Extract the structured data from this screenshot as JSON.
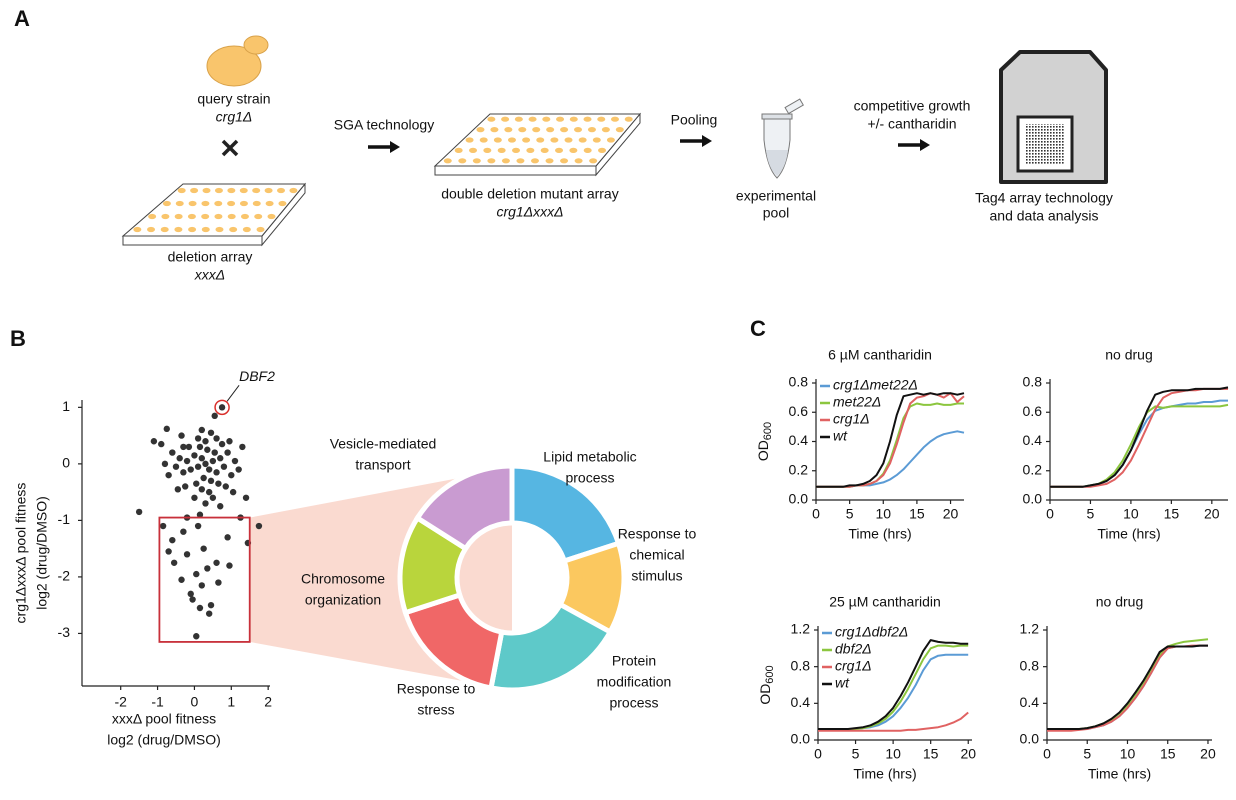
{
  "panel_labels": [
    "A",
    "B",
    "C"
  ],
  "panel_a": {
    "query_label": "query strain",
    "query_name": "crg1Δ",
    "deletion_label": "deletion array",
    "deletion_name": "xxxΔ",
    "step1": "SGA technology",
    "double_label": "double deletion mutant array",
    "double_name": "crg1ΔxxxΔ",
    "step2": "Pooling",
    "pool_label": [
      "experimental",
      "pool"
    ],
    "step3": [
      "competitive growth",
      "+/- cantharidin"
    ],
    "analysis": [
      "Tag4 array technology",
      "and data analysis"
    ]
  },
  "chart_data": [
    {
      "type": "scatter",
      "color": "#333333",
      "xlabel": [
        "xxxΔ pool fitness",
        "log2 (drug/DMSO)"
      ],
      "ylabel": [
        "crg1ΔxxxΔ pool fitness",
        "log2 (drug/DMSO)"
      ],
      "xlim": [
        -3.05,
        2.05
      ],
      "ylim": [
        -3.93,
        1.13
      ],
      "xticks": [
        -2,
        -1,
        0,
        1,
        2
      ],
      "yticks": [
        -3,
        -2,
        -1,
        0,
        1
      ],
      "annotation": "DBF2",
      "annotation_color": "#d9302c",
      "highlight": {
        "xlim": [
          -0.95,
          1.5
        ],
        "ylim": [
          -3.15,
          -0.95
        ],
        "color": "#c8303a"
      },
      "x": [
        0.75,
        0.3,
        0.2,
        0.4,
        0.1,
        0.5,
        0.0,
        0.6,
        -0.1,
        0.35,
        0.25,
        0.7,
        -0.2,
        0.45,
        0.15,
        0.8,
        -0.3,
        0.55,
        0.05,
        0.9,
        -0.4,
        0.65,
        0.3,
        -0.15,
        1.0,
        -0.5,
        0.2,
        0.75,
        0.4,
        -0.3,
        1.1,
        -0.6,
        0.5,
        0.1,
        0.85,
        -0.25,
        1.2,
        -0.7,
        0.6,
        0.0,
        0.95,
        -0.8,
        0.3,
        0.45,
        -0.45,
        1.05,
        -0.9,
        0.7,
        0.2,
        1.3,
        -0.35,
        0.55,
        -1.1,
        -0.75,
        1.4,
        1.75,
        -1.5,
        -0.85,
        0.1,
        -0.3,
        0.9,
        1.45,
        -0.6,
        0.25,
        -0.2,
        0.6,
        -0.7,
        0.35,
        0.05,
        -0.35,
        0.95,
        0.2,
        0.45,
        -0.1,
        -0.05,
        0.15,
        0.4,
        0.05,
        -0.55,
        0.65,
        1.25,
        -0.2,
        0.15
      ],
      "values": [
        1.0,
        0.0,
        0.1,
        -0.1,
        -0.05,
        0.05,
        0.15,
        -0.15,
        -0.1,
        0.25,
        -0.25,
        0.1,
        0.05,
        -0.3,
        0.3,
        -0.05,
        -0.15,
        0.2,
        -0.35,
        0.2,
        0.1,
        -0.35,
        0.4,
        0.3,
        -0.2,
        -0.05,
        -0.45,
        0.35,
        -0.5,
        0.3,
        0.05,
        0.2,
        -0.6,
        0.45,
        -0.4,
        -0.4,
        -0.1,
        -0.2,
        0.45,
        -0.6,
        0.4,
        0.0,
        -0.7,
        0.55,
        -0.45,
        -0.5,
        0.35,
        -0.75,
        0.6,
        0.3,
        0.5,
        0.85,
        0.4,
        0.62,
        -0.6,
        -1.1,
        -0.85,
        -1.1,
        -1.1,
        -1.2,
        -1.3,
        -1.4,
        -1.35,
        -1.5,
        -1.6,
        -1.75,
        -1.55,
        -1.85,
        -1.95,
        -2.05,
        -1.8,
        -2.15,
        -2.5,
        -2.3,
        -2.4,
        -2.55,
        -2.65,
        -3.05,
        -1.75,
        -2.1,
        -0.95,
        -0.95,
        -0.9
      ]
    },
    {
      "type": "donut",
      "categories": [
        [
          "Lipid metabolic",
          "process"
        ],
        [
          "Response to",
          "chemical",
          "stimulus"
        ],
        [
          "Protein",
          "modification",
          "process"
        ],
        [
          "Response to",
          "stress"
        ],
        [
          "Chromosome",
          "organization"
        ],
        [
          "Vesicle-mediated",
          "transport"
        ]
      ],
      "values": [
        20,
        13,
        20,
        17,
        14,
        16
      ],
      "colors": [
        "#56b6e2",
        "#fbc85f",
        "#5ec9c9",
        "#f06767",
        "#b9d53c",
        "#c99bd1"
      ]
    },
    {
      "type": "line",
      "title": "6 µM cantharidin",
      "xlabel": "Time (hrs)",
      "ylabel": [
        "OD",
        "600"
      ],
      "legend": true,
      "x": [
        0,
        1,
        2,
        3,
        4,
        5,
        6,
        7,
        8,
        9,
        10,
        11,
        12,
        13,
        14,
        15,
        16,
        17,
        18,
        19,
        20,
        21,
        22
      ],
      "xlim": [
        0,
        22
      ],
      "xticks": [
        0,
        5,
        10,
        15,
        20
      ],
      "ylim": [
        0,
        0.8
      ],
      "yticks": [
        {
          "value": 0,
          "label": "0.0"
        },
        0.2,
        0.4,
        0.6,
        0.8
      ],
      "series": [
        {
          "name": "crg1Δmet22Δ",
          "color": "#5b9bd5",
          "values": [
            0.09,
            0.09,
            0.09,
            0.09,
            0.09,
            0.09,
            0.1,
            0.1,
            0.1,
            0.11,
            0.12,
            0.14,
            0.17,
            0.21,
            0.26,
            0.31,
            0.36,
            0.4,
            0.43,
            0.45,
            0.46,
            0.47,
            0.46
          ]
        },
        {
          "name": "met22Δ",
          "color": "#8cc63f",
          "values": [
            0.09,
            0.09,
            0.09,
            0.09,
            0.09,
            0.09,
            0.1,
            0.1,
            0.11,
            0.13,
            0.18,
            0.27,
            0.41,
            0.56,
            0.64,
            0.66,
            0.65,
            0.65,
            0.66,
            0.65,
            0.65,
            0.66,
            0.66
          ]
        },
        {
          "name": "crg1Δ",
          "color": "#e06262",
          "values": [
            0.09,
            0.09,
            0.09,
            0.09,
            0.09,
            0.09,
            0.1,
            0.1,
            0.11,
            0.13,
            0.17,
            0.25,
            0.38,
            0.53,
            0.66,
            0.7,
            0.71,
            0.73,
            0.72,
            0.7,
            0.73,
            0.67,
            0.71
          ]
        },
        {
          "name": "wt",
          "color": "#111111",
          "values": [
            0.09,
            0.09,
            0.09,
            0.09,
            0.09,
            0.1,
            0.1,
            0.11,
            0.13,
            0.17,
            0.25,
            0.4,
            0.58,
            0.71,
            0.72,
            0.73,
            0.72,
            0.73,
            0.72,
            0.73,
            0.73,
            0.72,
            0.73
          ]
        }
      ]
    },
    {
      "type": "line",
      "title": "no drug",
      "xlabel": "Time (hrs)",
      "legend": false,
      "x": [
        0,
        1,
        2,
        3,
        4,
        5,
        6,
        7,
        8,
        9,
        10,
        11,
        12,
        13,
        14,
        15,
        16,
        17,
        18,
        19,
        20,
        21,
        22
      ],
      "xlim": [
        0,
        22
      ],
      "xticks": [
        0,
        5,
        10,
        15,
        20
      ],
      "ylim": [
        0,
        0.8
      ],
      "yticks": [
        {
          "value": 0,
          "label": "0.0"
        },
        0.2,
        0.4,
        0.6,
        0.8
      ],
      "series": [
        {
          "color": "#5b9bd5",
          "values": [
            0.09,
            0.09,
            0.09,
            0.09,
            0.09,
            0.1,
            0.11,
            0.13,
            0.17,
            0.24,
            0.34,
            0.45,
            0.55,
            0.61,
            0.63,
            0.64,
            0.65,
            0.66,
            0.66,
            0.67,
            0.67,
            0.68,
            0.68
          ]
        },
        {
          "color": "#8cc63f",
          "values": [
            0.09,
            0.09,
            0.09,
            0.09,
            0.09,
            0.1,
            0.11,
            0.14,
            0.19,
            0.27,
            0.38,
            0.5,
            0.6,
            0.64,
            0.63,
            0.64,
            0.64,
            0.64,
            0.64,
            0.64,
            0.64,
            0.64,
            0.65
          ]
        },
        {
          "color": "#e06262",
          "values": [
            0.09,
            0.09,
            0.09,
            0.09,
            0.09,
            0.09,
            0.1,
            0.11,
            0.14,
            0.19,
            0.27,
            0.38,
            0.5,
            0.62,
            0.7,
            0.73,
            0.74,
            0.75,
            0.75,
            0.76,
            0.76,
            0.76,
            0.76
          ]
        },
        {
          "color": "#111111",
          "values": [
            0.09,
            0.09,
            0.09,
            0.09,
            0.09,
            0.1,
            0.11,
            0.13,
            0.17,
            0.24,
            0.34,
            0.47,
            0.61,
            0.72,
            0.74,
            0.75,
            0.75,
            0.75,
            0.76,
            0.76,
            0.76,
            0.76,
            0.77
          ]
        }
      ]
    },
    {
      "type": "line",
      "title": "25 µM cantharidin",
      "xlabel": "Time (hrs)",
      "ylabel": [
        "OD",
        "600"
      ],
      "legend": true,
      "x": [
        0,
        1,
        2,
        3,
        4,
        5,
        6,
        7,
        8,
        9,
        10,
        11,
        12,
        13,
        14,
        15,
        16,
        17,
        18,
        19,
        20
      ],
      "xlim": [
        0,
        20.5
      ],
      "xticks": [
        0,
        5,
        10,
        15,
        20
      ],
      "ylim": [
        0,
        1.2
      ],
      "yticks": [
        {
          "value": 0,
          "label": "0.0"
        },
        0.4,
        0.8,
        1.2
      ],
      "series": [
        {
          "name": "crg1Δdbf2Δ",
          "color": "#5b9bd5",
          "values": [
            0.12,
            0.12,
            0.12,
            0.12,
            0.12,
            0.12,
            0.13,
            0.14,
            0.16,
            0.2,
            0.26,
            0.35,
            0.46,
            0.6,
            0.76,
            0.88,
            0.92,
            0.93,
            0.93,
            0.93,
            0.93
          ]
        },
        {
          "name": "dbf2Δ",
          "color": "#8cc63f",
          "values": [
            0.12,
            0.12,
            0.12,
            0.12,
            0.12,
            0.12,
            0.13,
            0.15,
            0.18,
            0.23,
            0.31,
            0.42,
            0.56,
            0.72,
            0.88,
            1.0,
            1.03,
            1.03,
            1.02,
            1.03,
            1.03
          ]
        },
        {
          "name": "crg1Δ",
          "color": "#e06262",
          "values": [
            0.1,
            0.1,
            0.1,
            0.1,
            0.1,
            0.1,
            0.1,
            0.1,
            0.1,
            0.1,
            0.1,
            0.1,
            0.11,
            0.11,
            0.12,
            0.13,
            0.14,
            0.16,
            0.19,
            0.23,
            0.3
          ]
        },
        {
          "name": "wt",
          "color": "#111111",
          "values": [
            0.12,
            0.12,
            0.12,
            0.12,
            0.12,
            0.13,
            0.14,
            0.16,
            0.2,
            0.26,
            0.35,
            0.48,
            0.63,
            0.8,
            0.97,
            1.09,
            1.07,
            1.06,
            1.06,
            1.05,
            1.05
          ]
        }
      ]
    },
    {
      "type": "line",
      "title": "no drug",
      "xlabel": "Time (hrs)",
      "legend": false,
      "x": [
        0,
        1,
        2,
        3,
        4,
        5,
        6,
        7,
        8,
        9,
        10,
        11,
        12,
        13,
        14,
        15,
        16,
        17,
        18,
        19,
        20
      ],
      "xlim": [
        0,
        20.5
      ],
      "xticks": [
        0,
        5,
        10,
        15,
        20
      ],
      "ylim": [
        0,
        1.2
      ],
      "yticks": [
        {
          "value": 0,
          "label": "0.0"
        },
        0.4,
        0.8,
        1.2
      ],
      "series": [
        {
          "color": "#5b9bd5",
          "values": [
            0.12,
            0.12,
            0.12,
            0.12,
            0.12,
            0.12,
            0.14,
            0.16,
            0.2,
            0.26,
            0.35,
            0.46,
            0.59,
            0.74,
            0.9,
            1.0,
            1.02,
            1.02,
            1.02,
            1.03,
            1.03
          ]
        },
        {
          "color": "#8cc63f",
          "values": [
            0.12,
            0.12,
            0.12,
            0.12,
            0.12,
            0.13,
            0.15,
            0.18,
            0.22,
            0.29,
            0.38,
            0.5,
            0.63,
            0.78,
            0.93,
            1.02,
            1.05,
            1.07,
            1.08,
            1.09,
            1.1
          ]
        },
        {
          "color": "#e06262",
          "values": [
            0.1,
            0.1,
            0.1,
            0.1,
            0.11,
            0.12,
            0.14,
            0.16,
            0.2,
            0.26,
            0.35,
            0.46,
            0.59,
            0.74,
            0.9,
            1.0,
            1.02,
            1.02,
            1.03,
            1.03,
            1.03
          ]
        },
        {
          "color": "#111111",
          "values": [
            0.12,
            0.12,
            0.12,
            0.12,
            0.12,
            0.13,
            0.15,
            0.18,
            0.23,
            0.3,
            0.4,
            0.52,
            0.65,
            0.8,
            0.96,
            1.02,
            1.02,
            1.02,
            1.02,
            1.03,
            1.03
          ]
        }
      ]
    }
  ]
}
